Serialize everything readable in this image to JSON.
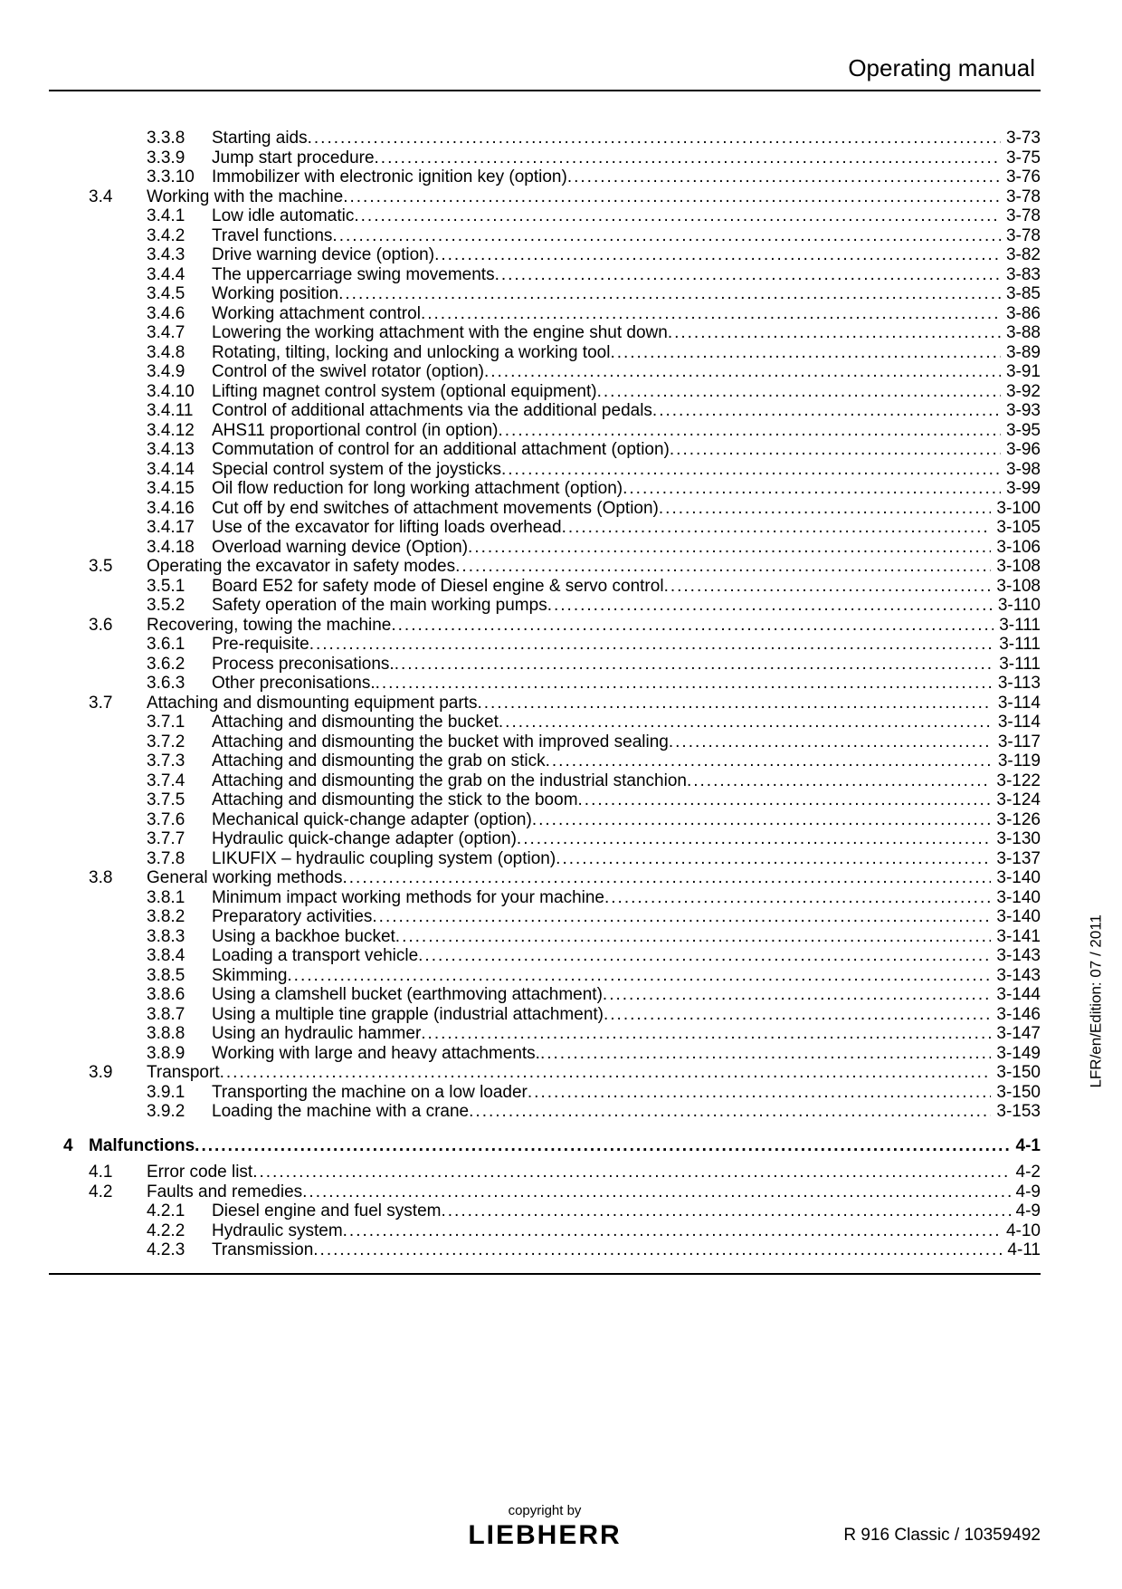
{
  "header": {
    "title": "Operating manual"
  },
  "side_label": "LFR/en/Edition: 07 / 2011",
  "footer": {
    "copyright": "copyright by",
    "brand": "LIEBHERR",
    "model": "R 916 Classic / 10359492"
  },
  "toc": [
    {
      "ch": "",
      "sec": "",
      "sub": "3.3.8",
      "title": "Starting aids",
      "page": "3-73"
    },
    {
      "ch": "",
      "sec": "",
      "sub": "3.3.9",
      "title": "Jump start procedure",
      "page": "3-75"
    },
    {
      "ch": "",
      "sec": "",
      "sub": "3.3.10",
      "title": "Immobilizer with electronic ignition key (option) ",
      "page": "3-76"
    },
    {
      "ch": "",
      "sec": "3.4",
      "sub": "",
      "title": "Working with the machine",
      "page": "3-78"
    },
    {
      "ch": "",
      "sec": "",
      "sub": "3.4.1",
      "title": "Low idle automatic",
      "page": "3-78"
    },
    {
      "ch": "",
      "sec": "",
      "sub": "3.4.2",
      "title": "Travel functions ",
      "page": "3-78"
    },
    {
      "ch": "",
      "sec": "",
      "sub": "3.4.3",
      "title": "Drive warning device (option) ",
      "page": "3-82"
    },
    {
      "ch": "",
      "sec": "",
      "sub": "3.4.4",
      "title": "The uppercarriage swing movements ",
      "page": "3-83"
    },
    {
      "ch": "",
      "sec": "",
      "sub": "3.4.5",
      "title": "Working position ",
      "page": "3-85"
    },
    {
      "ch": "",
      "sec": "",
      "sub": "3.4.6",
      "title": "Working attachment control ",
      "page": "3-86"
    },
    {
      "ch": "",
      "sec": "",
      "sub": "3.4.7",
      "title": "Lowering the working attachment with the engine shut down ",
      "page": "3-88"
    },
    {
      "ch": "",
      "sec": "",
      "sub": "3.4.8",
      "title": "Rotating, tilting, locking and unlocking a working tool ",
      "page": "3-89"
    },
    {
      "ch": "",
      "sec": "",
      "sub": "3.4.9",
      "title": "Control of the swivel rotator (option)",
      "page": "3-91"
    },
    {
      "ch": "",
      "sec": "",
      "sub": "3.4.10",
      "title": "Lifting magnet control system (optional equipment) ",
      "page": "3-92"
    },
    {
      "ch": "",
      "sec": "",
      "sub": "3.4.11",
      "title": "Control of additional attachments via the additional pedals ",
      "page": "3-93"
    },
    {
      "ch": "",
      "sec": "",
      "sub": "3.4.12",
      "title": "AHS11 proportional control (in option) ",
      "page": "3-95"
    },
    {
      "ch": "",
      "sec": "",
      "sub": "3.4.13",
      "title": "Commutation of control for an additional attachment (option)",
      "page": "3-96"
    },
    {
      "ch": "",
      "sec": "",
      "sub": "3.4.14",
      "title": "Special control system of the joysticks ",
      "page": "3-98"
    },
    {
      "ch": "",
      "sec": "",
      "sub": "3.4.15",
      "title": "Oil flow reduction for long working attachment (option)",
      "page": "3-99"
    },
    {
      "ch": "",
      "sec": "",
      "sub": "3.4.16",
      "title": "Cut off by end switches of attachment movements (Option) ",
      "page": "3-100"
    },
    {
      "ch": "",
      "sec": "",
      "sub": "3.4.17",
      "title": "Use of the excavator for lifting loads overhead ",
      "page": "3-105"
    },
    {
      "ch": "",
      "sec": "",
      "sub": "3.4.18",
      "title": "Overload warning device (Option) ",
      "page": "3-106"
    },
    {
      "ch": "",
      "sec": "3.5",
      "sub": "",
      "title": "Operating the excavator in safety modes ",
      "page": "3-108"
    },
    {
      "ch": "",
      "sec": "",
      "sub": "3.5.1",
      "title": "Board E52 for safety mode of Diesel engine & servo control ",
      "page": "3-108"
    },
    {
      "ch": "",
      "sec": "",
      "sub": "3.5.2",
      "title": "Safety operation of the main working pumps ",
      "page": "3-110"
    },
    {
      "ch": "",
      "sec": "3.6",
      "sub": "",
      "title": "Recovering, towing the machine",
      "page": "3-111"
    },
    {
      "ch": "",
      "sec": "",
      "sub": "3.6.1",
      "title": "Pre-requisite ",
      "page": "3-111"
    },
    {
      "ch": "",
      "sec": "",
      "sub": "3.6.2",
      "title": "Process preconisations. ",
      "page": "3-111"
    },
    {
      "ch": "",
      "sec": "",
      "sub": "3.6.3",
      "title": "Other preconisations. ",
      "page": "3-113"
    },
    {
      "ch": "",
      "sec": "3.7",
      "sub": "",
      "title": "Attaching and dismounting equipment parts",
      "page": "3-114"
    },
    {
      "ch": "",
      "sec": "",
      "sub": "3.7.1",
      "title": "Attaching and dismounting the bucket",
      "page": "3-114"
    },
    {
      "ch": "",
      "sec": "",
      "sub": "3.7.2",
      "title": "Attaching and dismounting the bucket with improved sealing ",
      "page": "3-117"
    },
    {
      "ch": "",
      "sec": "",
      "sub": "3.7.3",
      "title": "Attaching and dismounting the grab on stick",
      "page": "3-119"
    },
    {
      "ch": "",
      "sec": "",
      "sub": "3.7.4",
      "title": "Attaching and dismounting the grab on the industrial stanchion ",
      "page": "3-122"
    },
    {
      "ch": "",
      "sec": "",
      "sub": "3.7.5",
      "title": "Attaching and dismounting the stick to the boom ",
      "page": "3-124"
    },
    {
      "ch": "",
      "sec": "",
      "sub": "3.7.6",
      "title": "Mechanical quick-change adapter (option)",
      "page": "3-126"
    },
    {
      "ch": "",
      "sec": "",
      "sub": "3.7.7",
      "title": "Hydraulic quick-change adapter (option)",
      "page": "3-130"
    },
    {
      "ch": "",
      "sec": "",
      "sub": "3.7.8",
      "title": "LIKUFIX – hydraulic coupling system (option)",
      "page": "3-137"
    },
    {
      "ch": "",
      "sec": "3.8",
      "sub": "",
      "title": "General working methods",
      "page": "3-140"
    },
    {
      "ch": "",
      "sec": "",
      "sub": "3.8.1",
      "title": "Minimum impact working methods for your machine",
      "page": "3-140"
    },
    {
      "ch": "",
      "sec": "",
      "sub": "3.8.2",
      "title": "Preparatory activities ",
      "page": "3-140"
    },
    {
      "ch": "",
      "sec": "",
      "sub": "3.8.3",
      "title": "Using a backhoe bucket ",
      "page": "3-141"
    },
    {
      "ch": "",
      "sec": "",
      "sub": "3.8.4",
      "title": "Loading a transport vehicle ",
      "page": "3-143"
    },
    {
      "ch": "",
      "sec": "",
      "sub": "3.8.5",
      "title": "Skimming",
      "page": "3-143"
    },
    {
      "ch": "",
      "sec": "",
      "sub": "3.8.6",
      "title": "Using a clamshell bucket (earthmoving attachment)",
      "page": "3-144"
    },
    {
      "ch": "",
      "sec": "",
      "sub": "3.8.7",
      "title": "Using a multiple tine grapple (industrial attachment)",
      "page": "3-146"
    },
    {
      "ch": "",
      "sec": "",
      "sub": "3.8.8",
      "title": "Using an hydraulic hammer",
      "page": "3-147"
    },
    {
      "ch": "",
      "sec": "",
      "sub": "3.8.9",
      "title": "Working with large and heavy attachments. ",
      "page": "3-149"
    },
    {
      "ch": "",
      "sec": "3.9",
      "sub": "",
      "title": "Transport",
      "page": "3-150"
    },
    {
      "ch": "",
      "sec": "",
      "sub": "3.9.1",
      "title": "Transporting the machine on a low loader ",
      "page": "3-150"
    },
    {
      "ch": "",
      "sec": "",
      "sub": "3.9.2",
      "title": "Loading the machine with a crane",
      "page": "3-153"
    },
    {
      "gap": true
    },
    {
      "ch": "4",
      "sec": "",
      "sub": "",
      "title": "Malfunctions",
      "page": "4-1",
      "bold": true
    },
    {
      "gap_small": true
    },
    {
      "ch": "",
      "sec": "4.1",
      "sub": "",
      "title": "Error code list",
      "page": "4-2"
    },
    {
      "ch": "",
      "sec": "4.2",
      "sub": "",
      "title": "Faults and remedies ",
      "page": "4-9"
    },
    {
      "ch": "",
      "sec": "",
      "sub": "4.2.1",
      "title": "Diesel engine and fuel system",
      "page": "4-9"
    },
    {
      "ch": "",
      "sec": "",
      "sub": "4.2.2",
      "title": "Hydraulic system",
      "page": "4-10"
    },
    {
      "ch": "",
      "sec": "",
      "sub": "4.2.3",
      "title": "Transmission ",
      "page": "4-11"
    }
  ]
}
